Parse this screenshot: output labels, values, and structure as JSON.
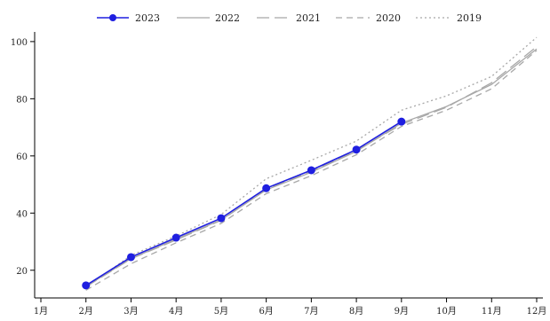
{
  "chart_data": {
    "type": "line",
    "title": "",
    "xlabel": "",
    "ylabel": "",
    "categories": [
      "1月",
      "2月",
      "3月",
      "4月",
      "5月",
      "6月",
      "7月",
      "8月",
      "9月",
      "10月",
      "11月",
      "12月"
    ],
    "y_ticks": [
      20,
      40,
      60,
      80,
      100
    ],
    "ylim": [
      10,
      104
    ],
    "grid": false,
    "legend_position": "top",
    "series": [
      {
        "name": "2023",
        "color": "#1f1fe0",
        "style": "solid-markers",
        "values": [
          null,
          14.7,
          24.6,
          31.4,
          38.2,
          48.7,
          55.0,
          62.2,
          72.0,
          null,
          null,
          null
        ]
      },
      {
        "name": "2022",
        "color": "#a8a8a8",
        "style": "solid",
        "values": [
          null,
          14.4,
          24.1,
          30.9,
          37.6,
          48.1,
          54.3,
          61.6,
          71.5,
          77.3,
          85.0,
          97.4
        ]
      },
      {
        "name": "2021",
        "color": "#a8a8a8",
        "style": "long-dash",
        "values": [
          null,
          14.2,
          24.0,
          30.6,
          37.5,
          48.3,
          54.6,
          61.9,
          71.0,
          77.0,
          85.6,
          98.2
        ]
      },
      {
        "name": "2020",
        "color": "#a8a8a8",
        "style": "dash",
        "values": [
          null,
          13.0,
          22.3,
          29.6,
          36.4,
          46.8,
          53.1,
          60.4,
          70.3,
          76.0,
          83.5,
          96.9
        ]
      },
      {
        "name": "2019",
        "color": "#a8a8a8",
        "style": "dot",
        "values": [
          null,
          14.0,
          25.2,
          32.0,
          39.5,
          52.0,
          58.5,
          65.2,
          76.0,
          81.0,
          87.8,
          101.5
        ]
      }
    ]
  }
}
